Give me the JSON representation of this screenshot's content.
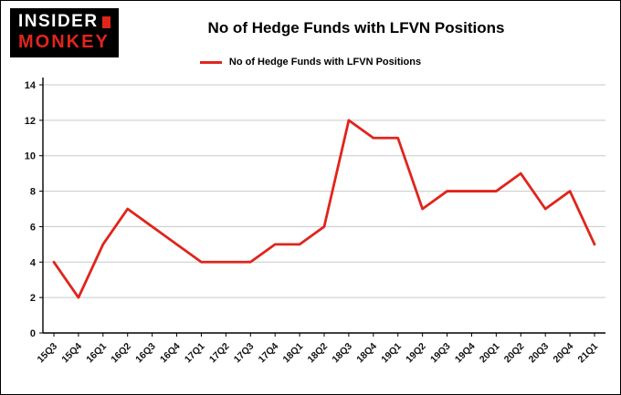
{
  "logo": {
    "line1": "INSIDER",
    "line2": "MONKEY"
  },
  "title": "No of Hedge Funds with LFVN Positions",
  "legend": {
    "label": "No of Hedge Funds with LFVN Positions"
  },
  "colors": {
    "accent": "#e0251c",
    "grid": "#c9c9c9",
    "axis": "#000000",
    "text": "#111111",
    "background": "#ffffff"
  },
  "chart_data": {
    "type": "line",
    "title": "No of Hedge Funds with LFVN Positions",
    "categories": [
      "15Q3",
      "15Q4",
      "16Q1",
      "16Q2",
      "16Q3",
      "16Q4",
      "17Q1",
      "17Q2",
      "17Q3",
      "17Q4",
      "18Q1",
      "18Q2",
      "18Q3",
      "18Q4",
      "19Q1",
      "19Q2",
      "19Q3",
      "19Q4",
      "20Q1",
      "20Q2",
      "20Q3",
      "20Q4",
      "21Q1"
    ],
    "series": [
      {
        "name": "No of Hedge Funds with LFVN Positions",
        "color": "#e0251c",
        "values": [
          4,
          2,
          5,
          7,
          6,
          5,
          4,
          4,
          4,
          5,
          5,
          6,
          12,
          11,
          11,
          7,
          8,
          8,
          8,
          9,
          7,
          8,
          5
        ]
      }
    ],
    "xlabel": "",
    "ylabel": "",
    "ylim": [
      0,
      14
    ],
    "yticks": [
      0,
      2,
      4,
      6,
      8,
      10,
      12,
      14
    ],
    "grid": true,
    "grid_color": "#c9c9c9",
    "legend_position": "top"
  }
}
